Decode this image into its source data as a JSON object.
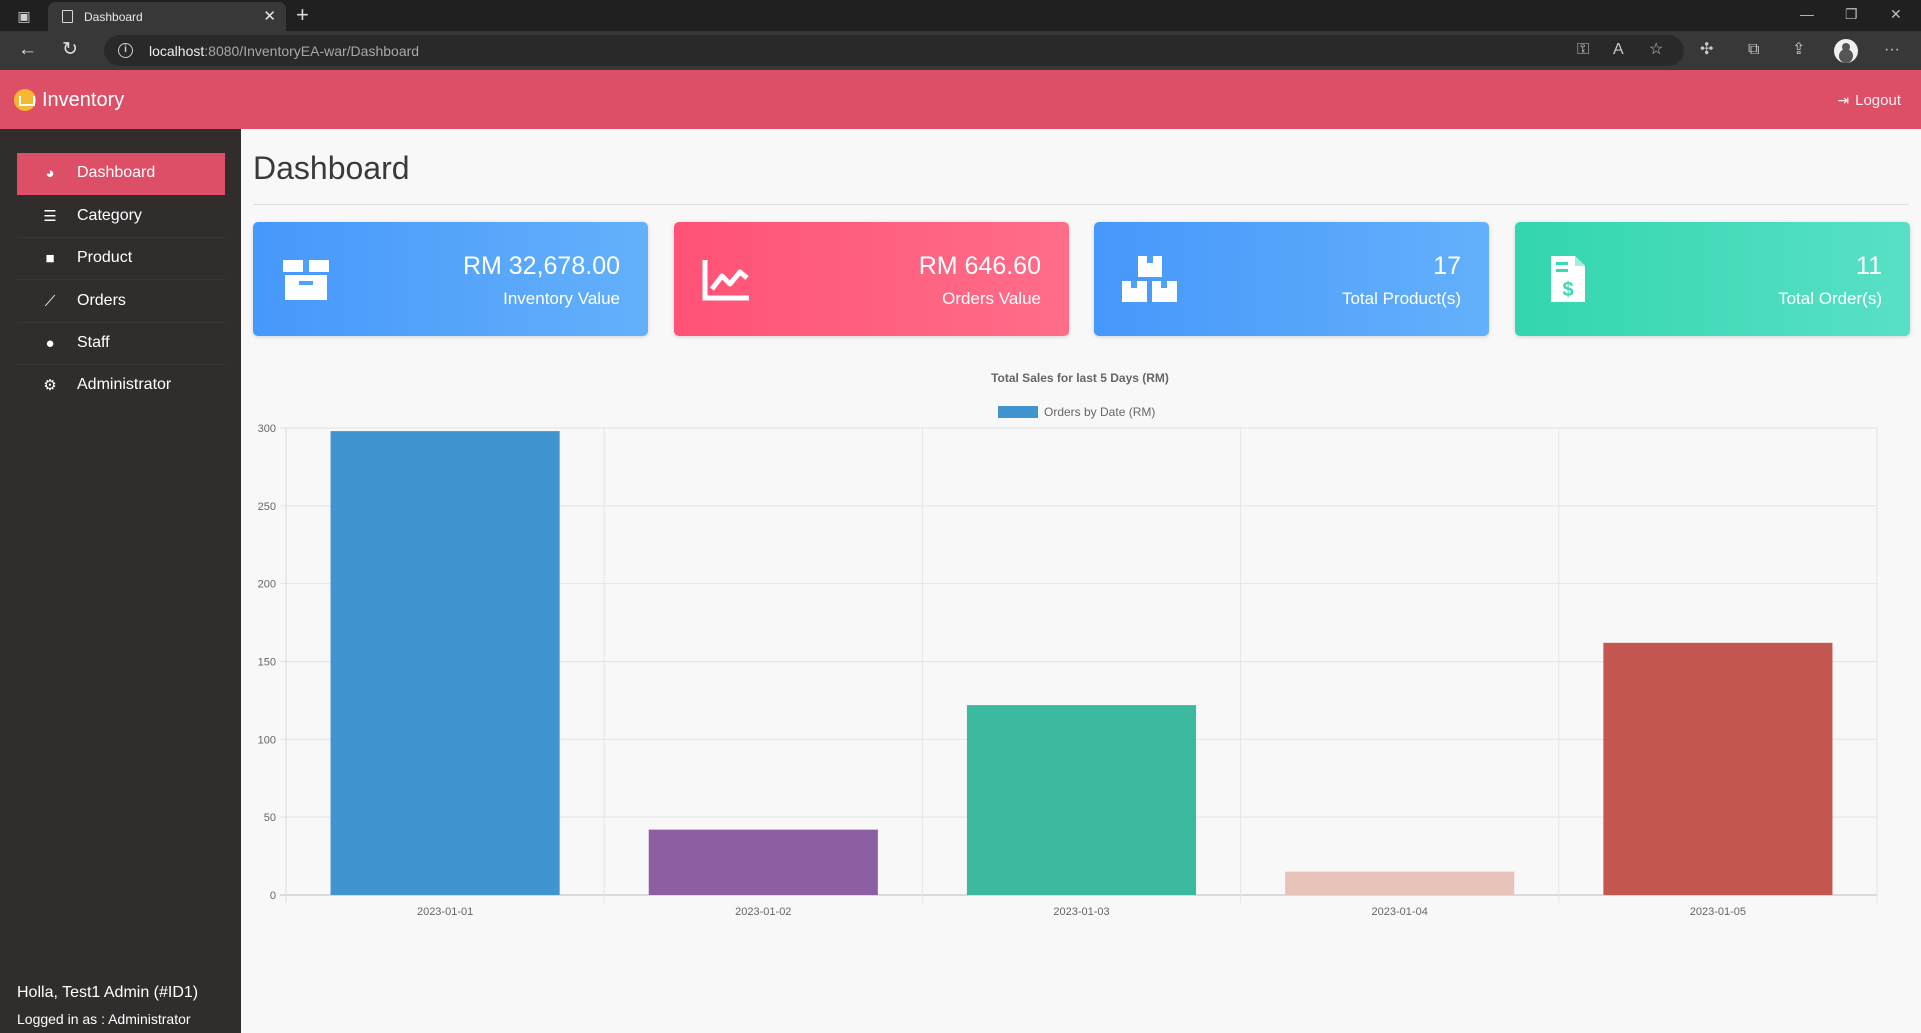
{
  "browser": {
    "tab_title": "Dashboard",
    "url_host": "localhost",
    "url_rest": ":8080/InventoryEA-war/Dashboard"
  },
  "navbar": {
    "brand": "Inventory",
    "logout_label": "Logout",
    "color": "#dd4e67"
  },
  "sidebar": {
    "items": [
      {
        "label": "Dashboard",
        "icon": "gauge-icon",
        "active": true
      },
      {
        "label": "Category",
        "icon": "list-icon",
        "active": false
      },
      {
        "label": "Product",
        "icon": "box-icon",
        "active": false
      },
      {
        "label": "Orders",
        "icon": "line-chart-icon",
        "active": false
      },
      {
        "label": "Staff",
        "icon": "user-icon",
        "active": false
      },
      {
        "label": "Administrator",
        "icon": "user-cog-icon",
        "active": false
      }
    ],
    "greeting": "Holla, Test1 Admin (#ID1)",
    "logged_in_as": "Logged in as : Administrator"
  },
  "page": {
    "title": "Dashboard"
  },
  "cards": [
    {
      "value": "RM 32,678.00",
      "label": "Inventory Value",
      "icon": "box-icon",
      "color": "#4da3fa"
    },
    {
      "value": "RM 646.60",
      "label": "Orders Value",
      "icon": "trend-chart-icon",
      "color": "#ff5c7c"
    },
    {
      "value": "17",
      "label": "Total Product(s)",
      "icon": "boxes-icon",
      "color": "#4da3fa"
    },
    {
      "value": "11",
      "label": "Total Order(s)",
      "icon": "invoice-dollar-icon",
      "color": "#3ad8b5"
    }
  ],
  "chart_data": {
    "type": "bar",
    "title": "Total Sales for last 5 Days (RM)",
    "legend": "Orders by Date (RM)",
    "legend_placement": "top",
    "categories": [
      "2023-01-01",
      "2023-01-02",
      "2023-01-03",
      "2023-01-04",
      "2023-01-05"
    ],
    "values": [
      298,
      42,
      122,
      15,
      162
    ],
    "colors": [
      "#4094cf",
      "#8e5ea2",
      "#3cba9f",
      "#e8c3b9",
      "#c45850"
    ],
    "legend_color": "#4094cf",
    "ylim": [
      0,
      300
    ],
    "yticks": [
      0,
      50,
      100,
      150,
      200,
      250,
      300
    ],
    "grid": true
  }
}
